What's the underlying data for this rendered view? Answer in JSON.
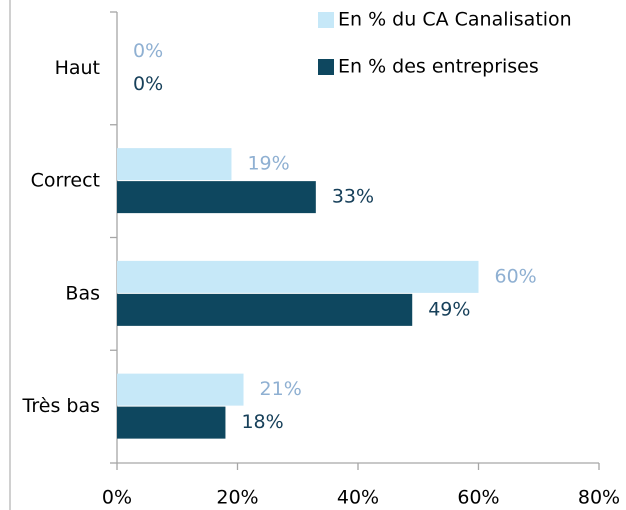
{
  "chart_data": {
    "type": "hbar",
    "categories": [
      "Haut",
      "Correct",
      "Bas",
      "Très bas"
    ],
    "series": [
      {
        "name": "En % du CA Canalisation",
        "color": "#c6e8f8",
        "values": [
          0,
          19,
          60,
          21
        ],
        "value_labels": [
          "0%",
          "19%",
          "60%",
          "21%"
        ]
      },
      {
        "name": "En % des entreprises",
        "color": "#0e475f",
        "values": [
          0,
          33,
          49,
          18
        ],
        "value_labels": [
          "0%",
          "33%",
          "49%",
          "18%"
        ]
      }
    ],
    "xlim": [
      0,
      80
    ],
    "xticks": [
      {
        "value": 0,
        "label": "0%"
      },
      {
        "value": 20,
        "label": "20%"
      },
      {
        "value": 40,
        "label": "40%"
      },
      {
        "value": 60,
        "label": "60%"
      },
      {
        "value": 80,
        "label": "80%"
      }
    ],
    "legend": "top-right"
  }
}
